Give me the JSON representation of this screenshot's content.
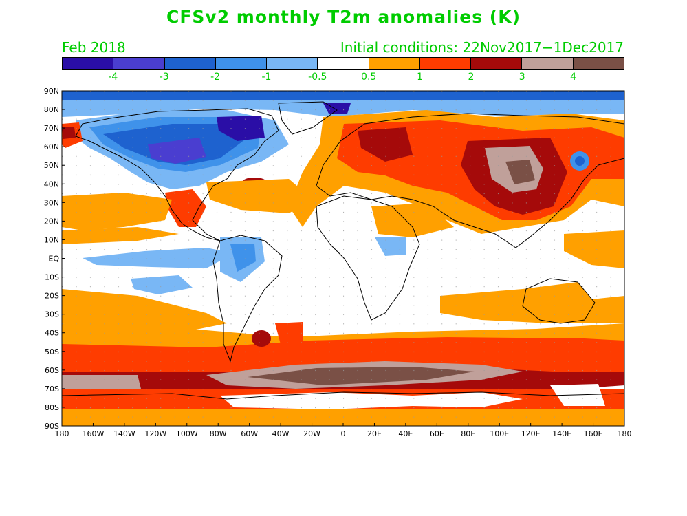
{
  "title": "CFSv2 monthly T2m anomalies (K)",
  "valid_month": "Feb 2018",
  "initial_conditions": "Initial conditions: 22Nov2017−1Dec2017",
  "colorbar": {
    "colors": [
      "#2a0ea6",
      "#4a3ed0",
      "#1e62cf",
      "#3f92ea",
      "#79b7f5",
      "#ffffff",
      "#ffa000",
      "#fe3c00",
      "#a50a0a",
      "#c0a09a",
      "#7a5046"
    ],
    "labels": [
      "-4",
      "-3",
      "-2",
      "-1",
      "-0.5",
      "0.5",
      "1",
      "2",
      "3",
      "4"
    ]
  },
  "lat_labels": [
    "90N",
    "80N",
    "70N",
    "60N",
    "50N",
    "40N",
    "30N",
    "20N",
    "10N",
    "EQ",
    "10S",
    "20S",
    "30S",
    "40S",
    "50S",
    "60S",
    "70S",
    "80S",
    "90S"
  ],
  "lon_labels": [
    "180",
    "160W",
    "140W",
    "120W",
    "100W",
    "80W",
    "60W",
    "40W",
    "20W",
    "0",
    "20E",
    "40E",
    "60E",
    "80E",
    "100E",
    "120E",
    "140E",
    "160E",
    "180"
  ],
  "colors": {
    "accent_text": "#00cc00",
    "land_outline": "#000000",
    "grid_dot": "#9a9a9a"
  }
}
